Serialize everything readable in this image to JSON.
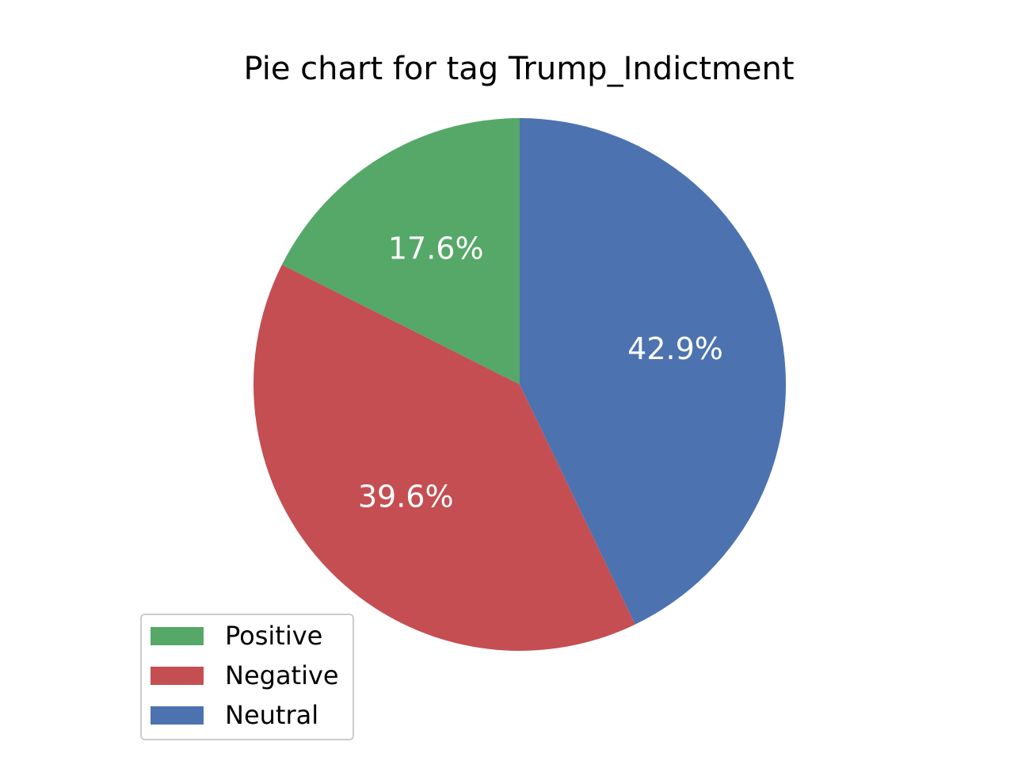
{
  "chart_data": {
    "type": "pie",
    "title": "Pie chart for tag Trump_Indictment",
    "categories": [
      "Positive",
      "Negative",
      "Neutral"
    ],
    "values": [
      17.6,
      39.6,
      42.9
    ],
    "labels": [
      "17.6%",
      "39.6%",
      "42.9%"
    ],
    "colors": [
      "#55a868",
      "#c44e52",
      "#4c72b0"
    ],
    "start_angle_deg": 90,
    "direction": "counterclockwise",
    "legend": {
      "placement": "lower-left",
      "entries": [
        "Positive",
        "Negative",
        "Neutral"
      ]
    }
  }
}
